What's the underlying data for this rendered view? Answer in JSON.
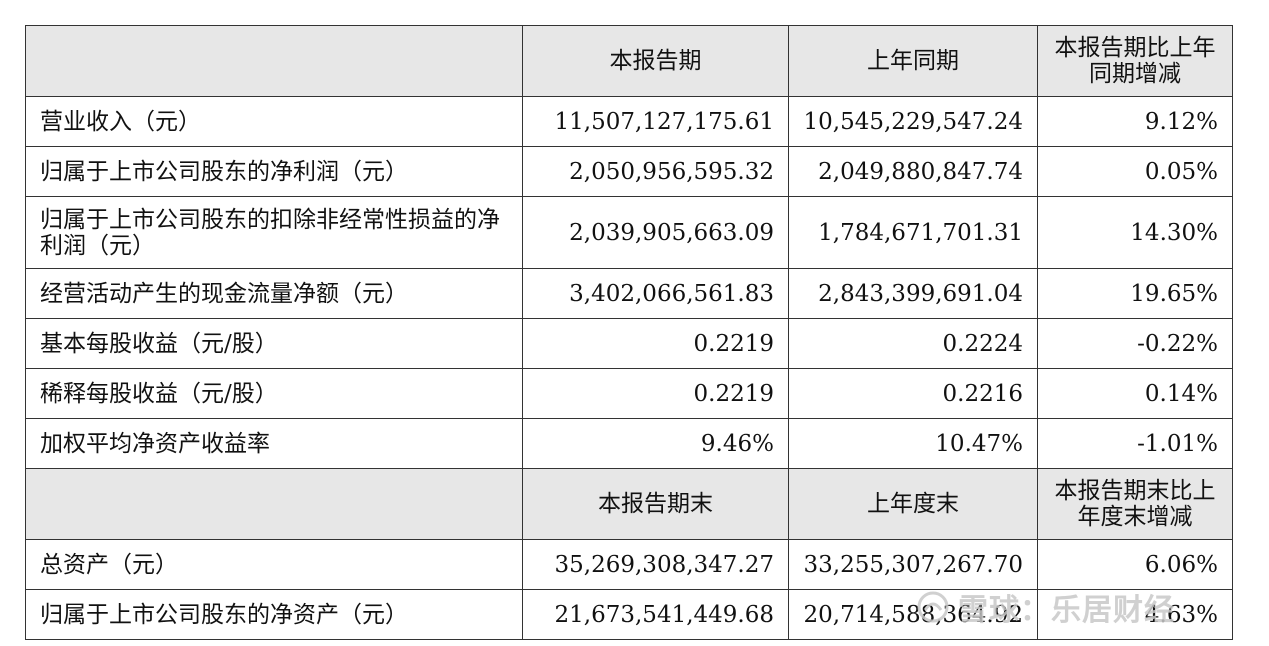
{
  "table": {
    "header1": {
      "blank": "",
      "col2": "本报告期",
      "col3": "上年同期",
      "col4": "本报告期比上年同期增减"
    },
    "rows1": [
      {
        "label": "营业收入（元）",
        "current": "11,507,127,175.61",
        "prior": "10,545,229,547.24",
        "change": "9.12%"
      },
      {
        "label": "归属于上市公司股东的净利润（元）",
        "current": "2,050,956,595.32",
        "prior": "2,049,880,847.74",
        "change": "0.05%"
      },
      {
        "label": "归属于上市公司股东的扣除非经常性损益的净利润（元）",
        "current": "2,039,905,663.09",
        "prior": "1,784,671,701.31",
        "change": "14.30%"
      },
      {
        "label": "经营活动产生的现金流量净额（元）",
        "current": "3,402,066,561.83",
        "prior": "2,843,399,691.04",
        "change": "19.65%"
      },
      {
        "label": "基本每股收益（元/股）",
        "current": "0.2219",
        "prior": "0.2224",
        "change": "-0.22%"
      },
      {
        "label": "稀释每股收益（元/股）",
        "current": "0.2219",
        "prior": "0.2216",
        "change": "0.14%"
      },
      {
        "label": "加权平均净资产收益率",
        "current": "9.46%",
        "prior": "10.47%",
        "change": "-1.01%"
      }
    ],
    "header2": {
      "blank": "",
      "col2": "本报告期末",
      "col3": "上年度末",
      "col4": "本报告期末比上年度末增减"
    },
    "rows2": [
      {
        "label": "总资产（元）",
        "current": "35,269,308,347.27",
        "prior": "33,255,307,267.70",
        "change": "6.06%"
      },
      {
        "label": "归属于上市公司股东的净资产（元）",
        "current": "21,673,541,449.68",
        "prior": "20,714,588,364.92",
        "change": "4.63%"
      }
    ]
  },
  "watermark": {
    "text": "雪球：乐居财经",
    "icon": "snowball-logo-icon"
  }
}
